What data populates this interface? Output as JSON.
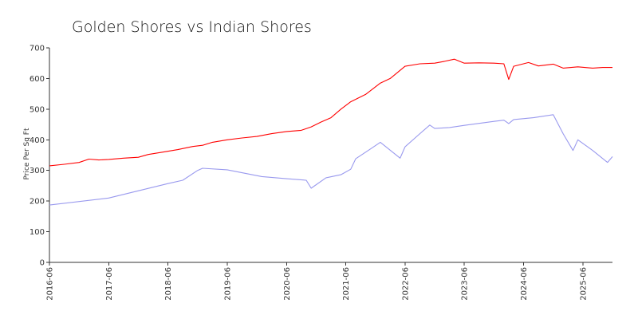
{
  "chart_data": {
    "type": "line",
    "title": "Golden Shores vs Indian Shores",
    "xlabel": "",
    "ylabel": "Price Per Sq Ft",
    "ylim": [
      0,
      700
    ],
    "y_ticks": [
      "0",
      "100",
      "200",
      "300",
      "400",
      "500",
      "600",
      "700"
    ],
    "x_range": [
      "2016-06",
      "2025-12"
    ],
    "x_ticks": [
      "2016-06",
      "2017-06",
      "2018-06",
      "2019-06",
      "2020-06",
      "2021-06",
      "2022-06",
      "2023-06",
      "2024-06",
      "2025-06"
    ],
    "grid": false,
    "legend": "none",
    "series": [
      {
        "color": "#ff0000",
        "points": [
          [
            "2016-06",
            315
          ],
          [
            "2016-09",
            320
          ],
          [
            "2016-12",
            326
          ],
          [
            "2017-02",
            337
          ],
          [
            "2017-04",
            334
          ],
          [
            "2017-06",
            336
          ],
          [
            "2017-09",
            340
          ],
          [
            "2017-12",
            343
          ],
          [
            "2018-02",
            352
          ],
          [
            "2018-05",
            360
          ],
          [
            "2018-08",
            368
          ],
          [
            "2018-11",
            378
          ],
          [
            "2019-01",
            382
          ],
          [
            "2019-03",
            392
          ],
          [
            "2019-06",
            400
          ],
          [
            "2019-09",
            406
          ],
          [
            "2019-12",
            411
          ],
          [
            "2020-03",
            420
          ],
          [
            "2020-06",
            427
          ],
          [
            "2020-09",
            431
          ],
          [
            "2020-11",
            442
          ],
          [
            "2021-01",
            458
          ],
          [
            "2021-03",
            472
          ],
          [
            "2021-05",
            500
          ],
          [
            "2021-07",
            524
          ],
          [
            "2021-10",
            548
          ],
          [
            "2022-01",
            585
          ],
          [
            "2022-03",
            600
          ],
          [
            "2022-06",
            640
          ],
          [
            "2022-09",
            648
          ],
          [
            "2022-12",
            650
          ],
          [
            "2023-02",
            656
          ],
          [
            "2023-04",
            663
          ],
          [
            "2023-06",
            650
          ],
          [
            "2023-09",
            651
          ],
          [
            "2023-12",
            650
          ],
          [
            "2024-02",
            648
          ],
          [
            "2024-03",
            597
          ],
          [
            "2024-04",
            640
          ],
          [
            "2024-07",
            652
          ],
          [
            "2024-09",
            641
          ],
          [
            "2024-12",
            647
          ],
          [
            "2025-02",
            634
          ],
          [
            "2025-05",
            638
          ],
          [
            "2025-08",
            634
          ],
          [
            "2025-10",
            636
          ],
          [
            "2025-12",
            636
          ]
        ]
      },
      {
        "color": "#9999ee",
        "points": [
          [
            "2016-06",
            187
          ],
          [
            "2017-06",
            210
          ],
          [
            "2018-06",
            257
          ],
          [
            "2018-09",
            268
          ],
          [
            "2018-12",
            300
          ],
          [
            "2019-01",
            307
          ],
          [
            "2019-06",
            302
          ],
          [
            "2020-01",
            280
          ],
          [
            "2020-06",
            273
          ],
          [
            "2020-10",
            268
          ],
          [
            "2020-11",
            242
          ],
          [
            "2021-02",
            276
          ],
          [
            "2021-05",
            286
          ],
          [
            "2021-07",
            304
          ],
          [
            "2021-08",
            338
          ],
          [
            "2021-11",
            370
          ],
          [
            "2022-01",
            392
          ],
          [
            "2022-05",
            340
          ],
          [
            "2022-06",
            377
          ],
          [
            "2022-09",
            420
          ],
          [
            "2022-11",
            448
          ],
          [
            "2022-12",
            437
          ],
          [
            "2023-03",
            440
          ],
          [
            "2023-06",
            447
          ],
          [
            "2023-12",
            460
          ],
          [
            "2024-02",
            464
          ],
          [
            "2024-03",
            453
          ],
          [
            "2024-04",
            466
          ],
          [
            "2024-08",
            472
          ],
          [
            "2024-12",
            482
          ],
          [
            "2025-02",
            420
          ],
          [
            "2025-04",
            365
          ],
          [
            "2025-05",
            400
          ],
          [
            "2025-08",
            365
          ],
          [
            "2025-11",
            326
          ],
          [
            "2025-12",
            345
          ]
        ]
      }
    ]
  }
}
